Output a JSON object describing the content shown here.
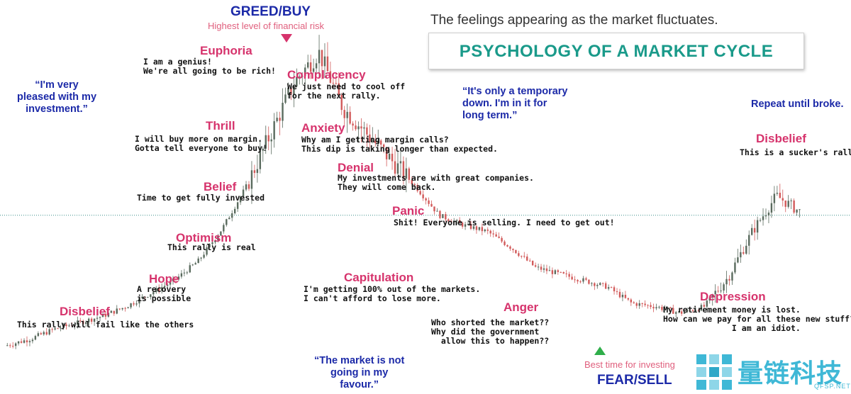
{
  "header": {
    "top_label": "GREED/BUY",
    "top_sublabel": "Highest level of financial risk",
    "subtitle": "The feelings appearing as the market fluctuates.",
    "title": "PSYCHOLOGY OF A MARKET CYCLE",
    "bottom_label": "FEAR/SELL",
    "bottom_sublabel": "Best time for investing"
  },
  "stages": [
    {
      "name": "Disbelief",
      "text": "This rally will fail like the others"
    },
    {
      "name": "Hope",
      "text": "A recovery\nis possible"
    },
    {
      "name": "Optimism",
      "text": "This rally is real"
    },
    {
      "name": "Belief",
      "text": "Time to get fully invested"
    },
    {
      "name": "Thrill",
      "text": "I will buy more on margin.\nGotta tell everyone to buy!"
    },
    {
      "name": "Euphoria",
      "text": "I am a genius!\nWe're all going to be rich!"
    },
    {
      "name": "Complacency",
      "text": "We just need to cool off\nfor the next rally."
    },
    {
      "name": "Anxiety",
      "text": "Why am I getting margin calls?\nThis dip is taking longer than expected."
    },
    {
      "name": "Denial",
      "text": "My investments are with great companies.\nThey will come back."
    },
    {
      "name": "Panic",
      "text": "Shit! Everyone is selling. I need to get out!"
    },
    {
      "name": "Capitulation",
      "text": "I'm getting 100% out of the markets.\nI can't afford to lose more."
    },
    {
      "name": "Anger",
      "text": "Who shorted the market??\nWhy did the government\n  allow this to happen??"
    },
    {
      "name": "Depression",
      "text": "My retirement money is lost.\nHow can we pay for all these new stuff?\n              I am an idiot."
    },
    {
      "name": "Disbelief",
      "text": "This is a sucker's rally."
    }
  ],
  "quotes": {
    "pleased": "“I'm very\npleased with my\ninvestment.”",
    "temporary": "“It's only a temporary\ndown. I'm in it for\nlong term.”",
    "not_favour": "“The market is not\ngoing in my\nfavour.”",
    "repeat": "Repeat until broke."
  },
  "brand": {
    "name": "量链科技",
    "sub": "QFSP.NET"
  },
  "colors": {
    "stage": "#d6336c",
    "quote": "#1c2aa8",
    "title": "#1a9a8a",
    "candle_up": "#5a6b5e",
    "candle_down": "#d25a5a",
    "reference_line": "#3b8f8a",
    "buy_marker": "#d6336c",
    "sell_marker": "#2fae4a",
    "brand": "#3fb8d6"
  },
  "chart_data": {
    "type": "candlestick",
    "title": "PSYCHOLOGY OF A MARKET CYCLE",
    "xlabel": "",
    "ylabel": "",
    "y_axis_shown": false,
    "ylim": [
      0,
      100
    ],
    "reference_line": {
      "style": "dotted",
      "y": 47
    },
    "grid": false,
    "legend": "none",
    "series": [
      {
        "x": [
          0,
          3,
          6,
          9,
          12,
          15,
          18,
          21,
          24,
          27,
          30,
          33,
          36,
          39,
          42,
          45,
          48,
          51,
          54,
          57,
          60,
          63,
          66,
          69,
          72,
          75,
          78,
          81,
          84,
          87,
          90,
          93,
          96,
          99
        ],
        "values": [
          7,
          9,
          12,
          14,
          16,
          19,
          23,
          27,
          33,
          43,
          56,
          72,
          88,
          97,
          80,
          72,
          64,
          56,
          47,
          44,
          42,
          37,
          31,
          29,
          27,
          25,
          20,
          19,
          17,
          19,
          28,
          42,
          53,
          48
        ]
      }
    ],
    "markers": [
      {
        "label": "GREED/BUY",
        "x": 35
      },
      {
        "label": "FEAR/SELL",
        "x": 74
      }
    ]
  }
}
